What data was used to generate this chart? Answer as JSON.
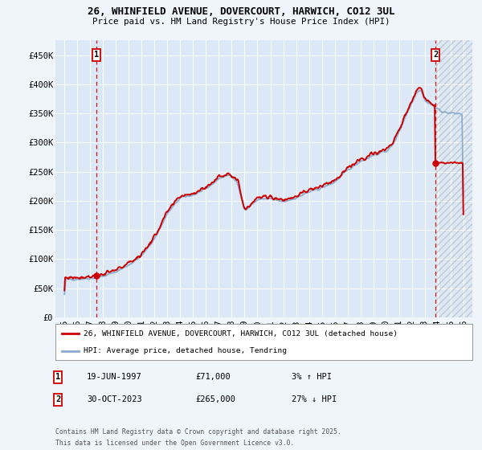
{
  "title_line1": "26, WHINFIELD AVENUE, DOVERCOURT, HARWICH, CO12 3UL",
  "title_line2": "Price paid vs. HM Land Registry's House Price Index (HPI)",
  "plot_bg_color": "#dce8f5",
  "fig_bg_color": "#f0f4fb",
  "grid_color": "#ffffff",
  "legend_label_red": "26, WHINFIELD AVENUE, DOVERCOURT, HARWICH, CO12 3UL (detached house)",
  "legend_label_blue": "HPI: Average price, detached house, Tendring",
  "annotation1_date": "19-JUN-1997",
  "annotation1_price": "£71,000",
  "annotation1_hpi": "3% ↑ HPI",
  "annotation2_date": "30-OCT-2023",
  "annotation2_price": "£265,000",
  "annotation2_hpi": "27% ↓ HPI",
  "footer": "Contains HM Land Registry data © Crown copyright and database right 2025.\nThis data is licensed under the Open Government Licence v3.0.",
  "ylim": [
    0,
    475000
  ],
  "yticks": [
    0,
    50000,
    100000,
    150000,
    200000,
    250000,
    300000,
    350000,
    400000,
    450000
  ],
  "ytick_labels": [
    "£0",
    "£50K",
    "£100K",
    "£150K",
    "£200K",
    "£250K",
    "£300K",
    "£350K",
    "£400K",
    "£450K"
  ],
  "xmin": 1994.3,
  "xmax": 2026.7,
  "xtick_start": 1995,
  "xtick_end": 2026,
  "point1_x": 1997.47,
  "point1_y": 71000,
  "point2_x": 2023.83,
  "point2_y": 265000,
  "red_color": "#cc0000",
  "blue_color": "#88aacc",
  "marker_color": "#cc0000",
  "hatch_start": 2023.83
}
